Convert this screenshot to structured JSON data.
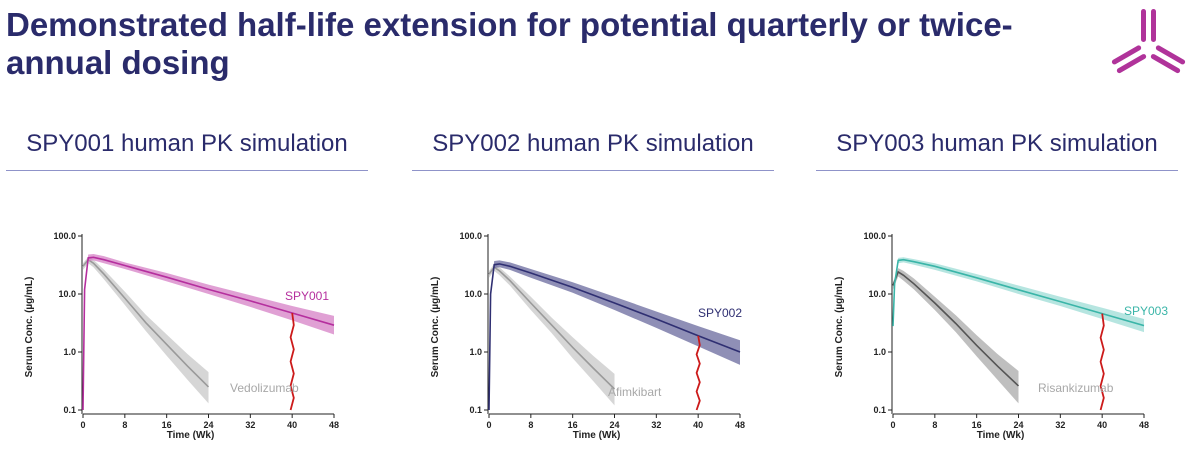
{
  "slide": {
    "title": "Demonstrated half-life extension for potential quarterly or twice-annual dosing",
    "logo_icon": "tri-blade-logo-icon",
    "logo_color": "#b0339a"
  },
  "chart_data": [
    {
      "type": "line",
      "title": "SPY001 human PK simulation",
      "xlabel": "Time (Wk)",
      "ylabel": "Serum Conc. (µg/mL)",
      "yscale": "log",
      "xlim": [
        0,
        48
      ],
      "ylim": [
        0.1,
        100
      ],
      "xticks": [
        0,
        8,
        16,
        24,
        32,
        40,
        48
      ],
      "yticks": [
        100,
        10,
        1,
        0.1
      ],
      "ytick_labels": [
        "100.0",
        "10.0",
        "1.0",
        "0.1"
      ],
      "marker_x": 40,
      "marker_color": "#cc1a1a",
      "series": [
        {
          "name": "SPY001",
          "color": "#b52f9e",
          "band_color": "#d680c6",
          "x": [
            0,
            0.3,
            1,
            2,
            4,
            8,
            16,
            24,
            32,
            40,
            48
          ],
          "y": [
            0.1,
            12,
            42,
            43,
            39,
            31,
            19.5,
            12,
            7.6,
            4.7,
            2.9
          ],
          "lower": [
            0.1,
            11,
            37,
            38,
            34,
            27,
            16.5,
            10,
            6.0,
            3.5,
            2.0
          ],
          "upper": [
            0.1,
            13,
            48,
            49,
            45,
            35,
            23,
            14.5,
            9.5,
            6.2,
            4.2
          ]
        },
        {
          "name": "Vedolizumab",
          "color": "#9a9a9a",
          "band_color": "#c8c8c8",
          "x": [
            0,
            1,
            2,
            4,
            8,
            12,
            16,
            20,
            24
          ],
          "y": [
            30,
            39,
            34,
            22,
            8.5,
            3.2,
            1.35,
            0.57,
            0.25
          ],
          "lower": [
            26,
            34,
            29,
            18,
            6.5,
            2.3,
            0.86,
            0.33,
            0.13
          ],
          "upper": [
            34,
            44,
            39,
            26.5,
            11,
            4.4,
            2.0,
            0.92,
            0.45
          ]
        }
      ]
    },
    {
      "type": "line",
      "title": "SPY002 human PK simulation",
      "xlabel": "Time (Wk)",
      "ylabel": "Serum Conc. (µg/mL)",
      "yscale": "log",
      "xlim": [
        0,
        48
      ],
      "ylim": [
        0.1,
        100
      ],
      "xticks": [
        0,
        8,
        16,
        24,
        32,
        40,
        48
      ],
      "yticks": [
        100,
        10,
        1,
        0.1
      ],
      "ytick_labels": [
        "100.0",
        "10.0",
        "1.0",
        "0.1"
      ],
      "marker_x": 40,
      "marker_color": "#cc1a1a",
      "series": [
        {
          "name": "SPY002",
          "color": "#2f2f72",
          "band_color": "#6a6a9e",
          "x": [
            0,
            0.3,
            1,
            2,
            4,
            8,
            16,
            24,
            32,
            40,
            48
          ],
          "y": [
            0.1,
            10,
            32,
            33,
            30,
            23,
            13,
            7.0,
            3.7,
            1.9,
            1.0
          ],
          "lower": [
            0.1,
            9,
            28,
            29,
            26,
            19,
            10.5,
            5.3,
            2.6,
            1.25,
            0.6
          ],
          "upper": [
            0.1,
            11,
            37,
            38,
            35,
            27,
            16,
            9.0,
            5.0,
            2.8,
            1.6
          ]
        },
        {
          "name": "Afimkibart",
          "color": "#9a9a9a",
          "band_color": "#c8c8c8",
          "x": [
            0,
            1,
            2,
            4,
            8,
            12,
            16,
            20,
            24
          ],
          "y": [
            22,
            29,
            25,
            17,
            7.0,
            2.9,
            1.2,
            0.52,
            0.23
          ],
          "lower": [
            19,
            25,
            21,
            14,
            5.3,
            2.1,
            0.78,
            0.31,
            0.12
          ],
          "upper": [
            25,
            33,
            29,
            20,
            9.0,
            3.9,
            1.8,
            0.85,
            0.42
          ]
        }
      ]
    },
    {
      "type": "line",
      "title": "SPY003 human PK simulation",
      "xlabel": "Time (Wk)",
      "ylabel": "Serum Conc. (µg/mL)",
      "yscale": "log",
      "xlim": [
        0,
        48
      ],
      "ylim": [
        0.1,
        100
      ],
      "xticks": [
        0,
        8,
        16,
        24,
        32,
        40,
        48
      ],
      "yticks": [
        100,
        10,
        1,
        0.1
      ],
      "ytick_labels": [
        "100.0",
        "10.0",
        "1.0",
        "0.1"
      ],
      "marker_x": 40,
      "marker_color": "#cc1a1a",
      "series": [
        {
          "name": "SPY003",
          "color": "#3ab5a8",
          "band_color": "#9edcd5",
          "x": [
            0,
            0.3,
            1,
            2,
            4,
            8,
            16,
            24,
            32,
            40,
            48
          ],
          "y": [
            2.8,
            15,
            38,
            39,
            36,
            30,
            19,
            11.8,
            7.4,
            4.6,
            2.85
          ],
          "lower": [
            2.8,
            13,
            34,
            35,
            32,
            26,
            16.5,
            10,
            6.2,
            3.7,
            2.2
          ],
          "upper": [
            2.8,
            17,
            42,
            43,
            40,
            34,
            22,
            14,
            9.0,
            5.8,
            3.7
          ]
        },
        {
          "name": "Risankizumab",
          "color": "#555555",
          "band_color": "#aaaaaa",
          "x": [
            0,
            1,
            2,
            4,
            8,
            12,
            16,
            20,
            24
          ],
          "y": [
            14,
            24,
            21,
            15,
            7.0,
            3.1,
            1.3,
            0.57,
            0.26
          ],
          "lower": [
            12,
            20,
            17,
            12,
            5.3,
            2.2,
            0.84,
            0.33,
            0.13
          ],
          "upper": [
            16,
            28,
            25,
            18.5,
            9.0,
            4.3,
            1.95,
            0.92,
            0.47
          ]
        }
      ]
    }
  ]
}
